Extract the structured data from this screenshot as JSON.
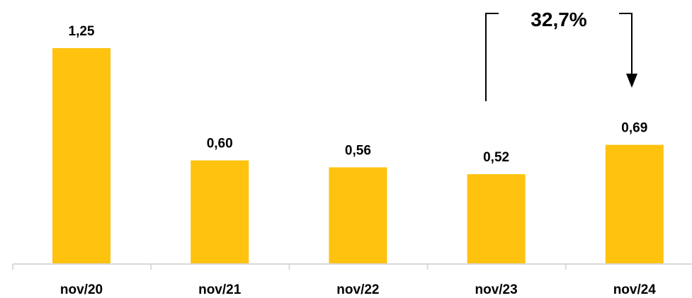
{
  "chart_data": {
    "type": "bar",
    "categories": [
      "nov/20",
      "nov/21",
      "nov/22",
      "nov/23",
      "nov/24"
    ],
    "values": [
      1.25,
      0.6,
      0.56,
      0.52,
      0.69
    ],
    "value_labels": [
      "1,25",
      "0,60",
      "0,56",
      "0,52",
      "0,69"
    ],
    "ylim": [
      0,
      1.4
    ],
    "grid": false,
    "colors": {
      "bar": "#FFC20E",
      "axis": "#D9D9D9",
      "text": "#000000"
    },
    "annotation": {
      "label": "32,7%",
      "from_category": "nov/23",
      "to_category": "nov/24"
    }
  }
}
